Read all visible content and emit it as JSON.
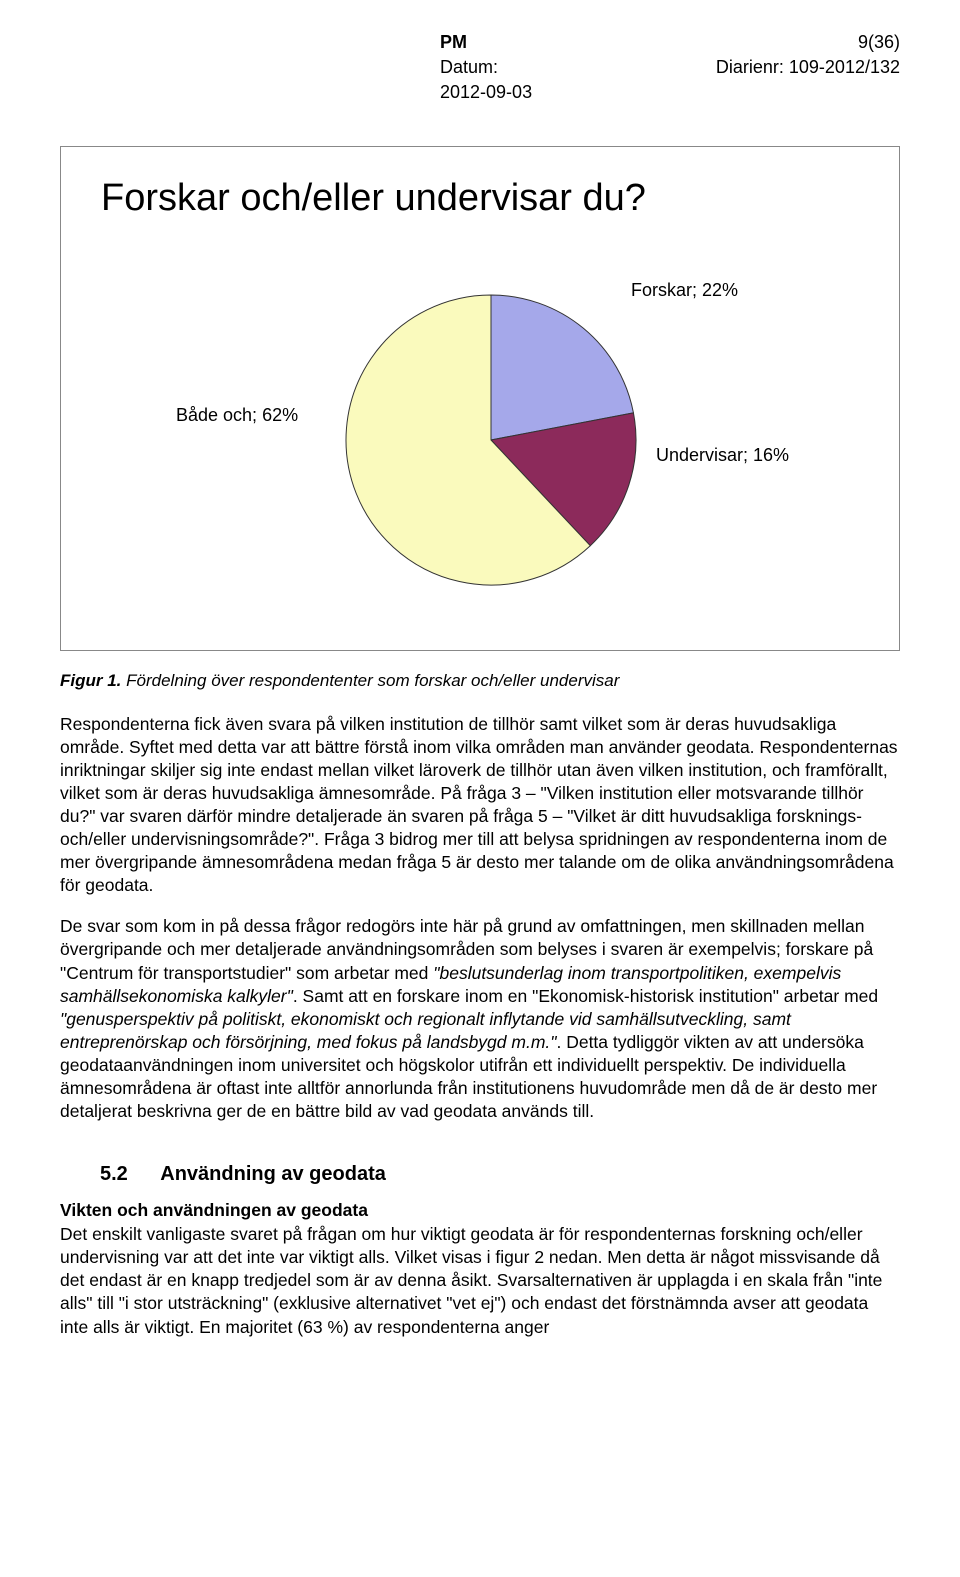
{
  "header": {
    "pm": "PM",
    "pagecount": "9(36)",
    "datum_label": "Datum:",
    "datum_value": "2012-09-03",
    "diarienr_label": "Diarienr:",
    "diarienr_value": "109-2012/132"
  },
  "chart": {
    "type": "pie",
    "title": "Forskar och/eller undervisar du?",
    "slices": [
      {
        "label": "Forskar; 22%",
        "value": 22,
        "color": "#a5a8ea",
        "stroke": "#333333"
      },
      {
        "label": "Undervisar; 16%",
        "value": 16,
        "color": "#8c2a5b",
        "stroke": "#333333"
      },
      {
        "label": "Både och; 62%",
        "value": 62,
        "color": "#fafabd",
        "stroke": "#333333"
      }
    ],
    "start_angle_deg": -90,
    "background": "#ffffff",
    "border_color": "#888888",
    "label_fontsize": 18
  },
  "caption": {
    "fignum": "Figur 1.",
    "text": "Fördelning över respondententer som forskar och/eller undervisar"
  },
  "para1": "Respondenterna fick även svara på vilken institution de tillhör samt vilket som är deras huvudsakliga område. Syftet med detta var att bättre förstå inom vilka områden man använder geodata. Respondenternas inriktningar skiljer sig inte endast mellan vilket läroverk de tillhör utan även vilken institution, och framförallt, vilket som är deras huvudsakliga ämnesområde. På fråga 3 – \"Vilken institution eller motsvarande tillhör du?\" var svaren därför mindre detaljerade än svaren på fråga 5 – \"Vilket är ditt huvudsakliga forsknings- och/eller undervisningsområde?\". Fråga 3 bidrog mer till att belysa spridningen av respondenterna inom de mer övergripande ämnesområdena medan fråga 5 är desto mer talande om de olika användningsområdena för geodata.",
  "para2a": "De svar som kom in på dessa frågor redogörs inte här på grund av omfattningen, men skillnaden mellan övergripande och mer detaljerade användningsområden som belyses i svaren är exempelvis; forskare på \"Centrum för transportstudier\" som arbetar med ",
  "para2_it1": "\"beslutsunderlag inom transportpolitiken, exempelvis samhällsekonomiska kalkyler\"",
  "para2b": ". Samt att en forskare inom en \"Ekonomisk-historisk institution\" arbetar med ",
  "para2_it2": "\"genusperspektiv på politiskt, ekonomiskt och regionalt inflytande vid samhällsutveckling, samt entreprenörskap och försörjning, med fokus på landsbygd m.m.\"",
  "para2c": ". Detta tydliggör vikten av att undersöka geodataanvändningen inom universitet och högskolor utifrån ett individuellt perspektiv. De individuella ämnesområdena är oftast inte alltför annorlunda från institutionens huvudområde men då de är desto mer detaljerat beskrivna ger de en bättre bild av vad geodata används till.",
  "section": {
    "num": "5.2",
    "title": "Användning av geodata"
  },
  "subhead": "Vikten och användningen av geodata",
  "para3": "Det enskilt vanligaste svaret på frågan om hur viktigt geodata är för respondenternas forskning och/eller undervisning var att det inte var viktigt alls. Vilket visas i figur 2 nedan. Men detta är något missvisande då det endast är en knapp tredjedel som är av denna åsikt. Svarsalternativen är upplagda i en skala från \"inte alls\" till \"i stor utsträckning\" (exklusive alternativet \"vet ej\") och endast det förstnämnda avser att geodata inte alls är viktigt. En majoritet (63 %) av respondenterna anger"
}
